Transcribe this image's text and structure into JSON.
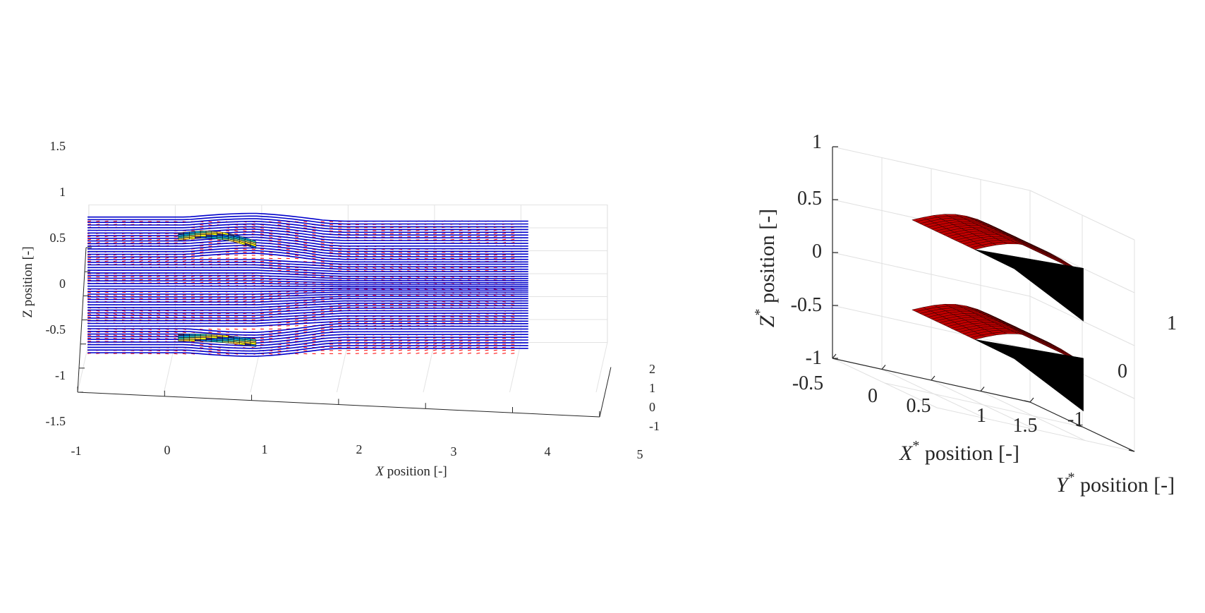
{
  "chart_data": [
    {
      "type": "streamline-quiver-3d",
      "title": "",
      "xlabel_var": "X",
      "xlabel_rest": " position [-]",
      "ylabel": "Z position [-]",
      "xlim": [
        -1,
        5
      ],
      "ylim": [
        -1.5,
        1.5
      ],
      "zlim": [
        -1,
        2
      ],
      "x_ticks": [
        "-1",
        "0",
        "1",
        "2",
        "3",
        "4",
        "5"
      ],
      "z_ticks": [
        "-1.5",
        "-1",
        "-0.5",
        "0",
        "0.5",
        "1",
        "1.5"
      ],
      "y_ticks": [
        "-1",
        "0",
        "1",
        "2"
      ],
      "series": [
        {
          "kind": "quiver",
          "color": "#ff0000"
        },
        {
          "kind": "streamlines",
          "color": "#0000cc"
        },
        {
          "kind": "airfoil-upper",
          "colormap": "parula",
          "x_range": [
            0.1,
            1.0
          ],
          "z_center": 1.35
        },
        {
          "kind": "airfoil-lower",
          "colormap": "parula",
          "x_range": [
            0.1,
            1.0
          ],
          "z_center": -0.85
        }
      ],
      "grid": true
    },
    {
      "type": "surface-3d",
      "title": "",
      "zlabel_var": "Z",
      "zlabel_sup": "*",
      "zlabel_rest": " position [-]",
      "xlabel_var": "X",
      "xlabel_sup": "*",
      "xlabel_rest": " position [-]",
      "ylabel_var": "Y",
      "ylabel_sup": "*",
      "ylabel_rest": " position [-]",
      "x_ticks": [
        "-0.5",
        "0",
        "0.5",
        "1",
        "1.5"
      ],
      "y_ticks": [
        "-1",
        "0",
        "1"
      ],
      "z_ticks": [
        "-1",
        "-0.5",
        "0",
        "0.5",
        "1"
      ],
      "xlim": [
        -0.5,
        1.5
      ],
      "ylim": [
        -1,
        1
      ],
      "zlim": [
        -1,
        1
      ],
      "series": [
        {
          "kind": "surface-upper",
          "color": "#c00000"
        },
        {
          "kind": "surface-lower",
          "color": "#c00000"
        }
      ],
      "grid": true
    }
  ]
}
